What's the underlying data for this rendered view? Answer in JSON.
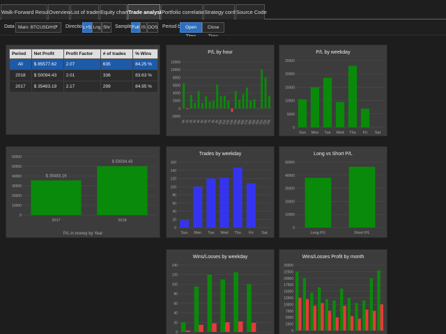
{
  "tabs": [
    {
      "label": "Walk-Forward Results",
      "active": false
    },
    {
      "label": "Overview",
      "active": false
    },
    {
      "label": "List of trades",
      "active": false
    },
    {
      "label": "Equity chart",
      "active": false
    },
    {
      "label": "Trade analysis",
      "active": true
    },
    {
      "label": "Portfolio correlation",
      "active": false
    },
    {
      "label": "Strategy config",
      "active": false
    },
    {
      "label": "Source Code",
      "active": false
    }
  ],
  "toolbar": {
    "data_label": "Data",
    "data_value": "Main: BTCUSD/H1",
    "direction_label": "Direction",
    "direction_options": [
      {
        "label": "L+S",
        "selected": true
      },
      {
        "label": "Lng",
        "selected": false
      },
      {
        "label": "Shr",
        "selected": false
      }
    ],
    "sample_label": "Sample",
    "sample_options": [
      {
        "label": "Full",
        "selected": true
      },
      {
        "label": "IS",
        "selected": false
      },
      {
        "label": "OOS",
        "selected": false
      }
    ],
    "period_label": "Period by",
    "period_options": [
      {
        "label": "Open Time",
        "selected": true
      },
      {
        "label": "Close Time",
        "selected": false
      }
    ]
  },
  "stats_table": {
    "headers": [
      "Period",
      "Net Profit",
      "Profit Factor",
      "# of trades",
      "% Wins"
    ],
    "rows": [
      {
        "period": "All",
        "net_profit": "$ 85577.62",
        "profit_factor": "2.07",
        "trades": "635",
        "wins": "84.25 %",
        "selected": true
      },
      {
        "period": "2018",
        "net_profit": "$ 50094.43",
        "profit_factor": "2.01",
        "trades": "336",
        "wins": "83.63 %",
        "selected": false
      },
      {
        "period": "2017",
        "net_profit": "$ 35483.19",
        "profit_factor": "2.17",
        "trades": "299",
        "wins": "84.95 %",
        "selected": false
      }
    ]
  },
  "colors": {
    "green": "#0a8a0a",
    "red": "#e83a3a",
    "blue": "#3434f0",
    "panel": "#3c3c3c",
    "grid": "#505050",
    "selected_row": "#1d5aa8"
  },
  "chart_data": [
    {
      "id": "pl-by-hour",
      "type": "bar",
      "title": "P/L by hour",
      "categories": [
        "0h",
        "1h",
        "2h",
        "3h",
        "4h",
        "5h",
        "6h",
        "7h",
        "8h",
        "9h",
        "10h",
        "11h",
        "12h",
        "13h",
        "14h",
        "15h",
        "16h",
        "17h",
        "18h",
        "19h",
        "20h",
        "21h",
        "22h",
        "23h"
      ],
      "values": [
        6500,
        -200,
        3500,
        1400,
        4500,
        1400,
        3200,
        1800,
        2000,
        6200,
        3200,
        3300,
        2000,
        -900,
        4500,
        2300,
        3700,
        5400,
        2100,
        2400,
        100,
        10000,
        8000,
        3300
      ],
      "ylim": [
        -2000,
        12000
      ],
      "yticks": [
        "12000",
        "10000",
        "8000",
        "6000",
        "4000",
        "2000",
        "0",
        "-2000"
      ]
    },
    {
      "id": "pl-by-weekday",
      "type": "bar",
      "title": "P/L by weekday",
      "categories": [
        "Sun",
        "Mon",
        "Tue",
        "Wed",
        "Thu",
        "Fri",
        "Sat"
      ],
      "values": [
        10500,
        15000,
        18500,
        9500,
        23000,
        7000,
        0
      ],
      "ylim": [
        0,
        25000
      ],
      "yticks": [
        "25000",
        "20000",
        "15000",
        "10000",
        "5000",
        "0"
      ]
    },
    {
      "id": "pl-by-year",
      "type": "bar",
      "title": "",
      "xlabel": "P/L in money by Year",
      "categories": [
        "2017",
        "2018"
      ],
      "values": [
        35483.19,
        50094.43
      ],
      "data_labels": [
        "$ 35483.19",
        "$ 50094.43"
      ],
      "ylim": [
        0,
        60000
      ],
      "yticks": [
        "60000",
        "50000",
        "40000",
        "30000",
        "20000",
        "10000",
        "0"
      ]
    },
    {
      "id": "trades-by-weekday",
      "type": "bar",
      "title": "Trades by weekday",
      "categories": [
        "Sun",
        "Mon",
        "Tue",
        "Wed",
        "Thu",
        "Fri",
        "Sat"
      ],
      "values": [
        18,
        100,
        120,
        122,
        147,
        108,
        0
      ],
      "ylim": [
        0,
        160
      ],
      "yticks": [
        "160",
        "140",
        "120",
        "100",
        "80",
        "60",
        "40",
        "20",
        "0"
      ]
    },
    {
      "id": "long-vs-short",
      "type": "bar",
      "title": "Long vs Short P/L",
      "categories": [
        "Long P/L",
        "Short P/L"
      ],
      "values": [
        38000,
        46500
      ],
      "ylim": [
        0,
        50000
      ],
      "yticks": [
        "50000",
        "40000",
        "30000",
        "20000",
        "10000",
        "0"
      ]
    },
    {
      "id": "wins-losses-by-weekday",
      "type": "bar",
      "title": "Wins/Losses by weekday",
      "categories": [
        "Sun",
        "Mon",
        "Tue",
        "Wed",
        "Thu",
        "Fri",
        "Sat"
      ],
      "series": [
        {
          "values": [
            20,
            95,
            120,
            110,
            125,
            100,
            0
          ]
        },
        {
          "values": [
            3,
            15,
            18,
            20,
            22,
            19,
            0
          ]
        }
      ],
      "ylim": [
        0,
        140
      ],
      "yticks": [
        "140",
        "120",
        "100",
        "80",
        "60",
        "40",
        "20",
        "0"
      ]
    },
    {
      "id": "wins-losses-profit-by-month",
      "type": "bar",
      "title": "Wins/Losses Profit by month",
      "categories": [
        "Jan",
        "Feb",
        "Mar",
        "Apr",
        "May",
        "Jun",
        "Jul",
        "Aug",
        "Sep",
        "Oct",
        "Nov",
        "Dec"
      ],
      "series": [
        {
          "values": [
            22500,
            20000,
            14500,
            16500,
            12000,
            11500,
            16000,
            12500,
            10500,
            11500,
            20000,
            23000
          ]
        },
        {
          "values": [
            12500,
            12000,
            9500,
            10500,
            7500,
            5000,
            9500,
            5500,
            4500,
            8000,
            7500,
            10000
          ]
        }
      ],
      "ylim": [
        0,
        25000
      ],
      "yticks": [
        "25000",
        "22500",
        "20000",
        "17500",
        "15000",
        "12500",
        "10000",
        "7500",
        "5000",
        "2500",
        "0"
      ]
    }
  ]
}
